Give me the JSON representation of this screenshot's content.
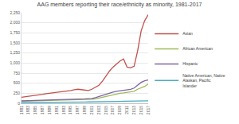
{
  "chart_data": {
    "type": "line",
    "title": "AAG members reporting their race/ethnicity as minority, 1981-2017",
    "x": [
      1981,
      1982,
      1983,
      1984,
      1985,
      1986,
      1987,
      1988,
      1989,
      1990,
      1991,
      1992,
      1993,
      1994,
      1995,
      1996,
      1997,
      1998,
      1999,
      2000,
      2001,
      2002,
      2003,
      2004,
      2005,
      2006,
      2007,
      2008,
      2009,
      2010,
      2011,
      2012,
      2013,
      2014,
      2015,
      2016,
      2017
    ],
    "series": [
      {
        "name": "Asian",
        "color": "#c0504d",
        "values": [
          150,
          160,
          175,
          190,
          200,
          210,
          225,
          240,
          250,
          265,
          280,
          290,
          300,
          310,
          320,
          340,
          350,
          340,
          330,
          320,
          350,
          400,
          450,
          550,
          680,
          800,
          900,
          980,
          1050,
          1100,
          900,
          880,
          920,
          1300,
          1800,
          2050,
          2200
        ]
      },
      {
        "name": "African American",
        "color": "#9bbb59",
        "values": [
          50,
          52,
          55,
          58,
          60,
          62,
          65,
          68,
          70,
          72,
          75,
          78,
          80,
          82,
          85,
          88,
          90,
          92,
          95,
          98,
          100,
          110,
          130,
          150,
          180,
          200,
          220,
          240,
          250,
          260,
          270,
          280,
          300,
          350,
          380,
          420,
          480
        ]
      },
      {
        "name": "Hispanic",
        "color": "#8064a2",
        "values": [
          60,
          62,
          65,
          68,
          70,
          72,
          75,
          78,
          80,
          85,
          88,
          90,
          92,
          95,
          98,
          100,
          100,
          105,
          110,
          115,
          120,
          140,
          170,
          200,
          230,
          260,
          280,
          300,
          310,
          320,
          330,
          350,
          380,
          450,
          520,
          560,
          580
        ]
      },
      {
        "name": "Native American, Native Alaskan, Pacific Islander",
        "color": "#4bacc6",
        "values": [
          20,
          20,
          22,
          22,
          24,
          25,
          25,
          26,
          27,
          28,
          28,
          30,
          30,
          30,
          32,
          32,
          33,
          34,
          34,
          35,
          35,
          36,
          38,
          40,
          42,
          44,
          45,
          46,
          48,
          50,
          50,
          52,
          54,
          56,
          58,
          60,
          62
        ]
      }
    ],
    "xlim": [
      1981,
      2017
    ],
    "xticks": [
      1981,
      1983,
      1985,
      1987,
      1989,
      1991,
      1993,
      1995,
      1997,
      1999,
      2001,
      2003,
      2005,
      2007,
      2009,
      2011,
      2013,
      2015,
      2017
    ],
    "ylim": [
      0,
      2250
    ],
    "yticks": [
      0,
      250,
      500,
      750,
      {
        "value": 1000,
        "label": "1,000"
      },
      {
        "value": 1250,
        "label": "1,250"
      },
      {
        "value": 1500,
        "label": "1,500"
      },
      {
        "value": 1750,
        "label": "1,750"
      },
      {
        "value": 2000,
        "label": "2,000"
      },
      {
        "value": 2250,
        "label": "2,250"
      }
    ],
    "grid": true,
    "legend": "right"
  }
}
